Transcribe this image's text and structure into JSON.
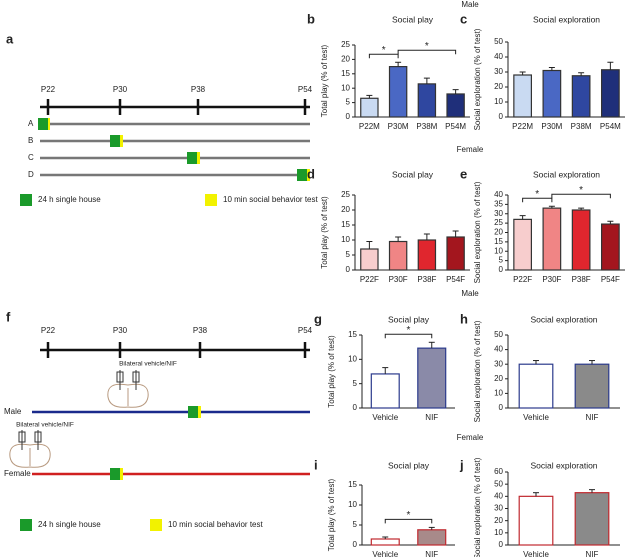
{
  "figure_a": {
    "letter": "a",
    "timepoints": [
      "P22",
      "P30",
      "P38",
      "P54"
    ],
    "rows": [
      "A",
      "B",
      "C",
      "D"
    ],
    "legend": [
      "24 h single house",
      "10 min social behavior test"
    ]
  },
  "figure_f": {
    "letter": "f",
    "timepoints": [
      "P22",
      "P30",
      "P38",
      "P54"
    ],
    "injection_labels": [
      "Bilateral vehicle/NIF",
      "Bilateral vehicle/NIF"
    ],
    "groups": [
      "Male",
      "Female"
    ],
    "legend": [
      "24 h single house",
      "10 min social behavior test"
    ]
  },
  "section_headers": [
    "Male",
    "Female",
    "Male",
    "Female"
  ],
  "chart_data": [
    {
      "letter": "b",
      "type": "bar",
      "title": "Social play",
      "y_label": "Total play (% of test)",
      "categories": [
        "P22M",
        "P30M",
        "P38M",
        "P54M"
      ],
      "values": [
        6.5,
        17.5,
        11.5,
        8
      ],
      "errors": [
        1,
        1.5,
        2,
        1.5
      ],
      "colors": [
        "#c9daf2",
        "#4a68c4",
        "#2f47a0",
        "#1f2f7a"
      ],
      "edge_colors": [
        "#333",
        "#333",
        "#333",
        "#333"
      ],
      "ylim": [
        0,
        25
      ],
      "yticks": [
        0,
        5,
        10,
        15,
        20,
        25
      ],
      "comparisons": [
        {
          "label": "*",
          "between": [
            "P22M",
            "P30M"
          ]
        },
        {
          "label": "*",
          "between": [
            "P30M",
            "P54M"
          ]
        }
      ]
    },
    {
      "letter": "c",
      "type": "bar",
      "title": "Social exploration",
      "y_label": "Social exploration (% of test)",
      "categories": [
        "P22M",
        "P30M",
        "P38M",
        "P54M"
      ],
      "values": [
        28,
        31,
        27.5,
        31.5
      ],
      "errors": [
        2,
        2,
        2,
        5
      ],
      "colors": [
        "#c9daf2",
        "#4a68c4",
        "#2f47a0",
        "#1f2f7a"
      ],
      "edge_colors": [
        "#333",
        "#333",
        "#333",
        "#333"
      ],
      "ylim": [
        0,
        50
      ],
      "yticks": [
        0,
        10,
        20,
        30,
        40,
        50
      ],
      "comparisons": []
    },
    {
      "letter": "d",
      "type": "bar",
      "title": "Social play",
      "y_label": "Total play (% of test)",
      "categories": [
        "P22F",
        "P30F",
        "P38F",
        "P54F"
      ],
      "values": [
        7,
        9.5,
        10,
        11
      ],
      "errors": [
        2.5,
        1.5,
        2,
        2
      ],
      "colors": [
        "#f7cdcd",
        "#f08585",
        "#e0262e",
        "#a3161e"
      ],
      "edge_colors": [
        "#333",
        "#333",
        "#333",
        "#333"
      ],
      "ylim": [
        0,
        25
      ],
      "yticks": [
        0,
        5,
        10,
        15,
        20,
        25
      ],
      "comparisons": []
    },
    {
      "letter": "e",
      "type": "bar",
      "title": "Social exploration",
      "y_label": "Social exploration (% of test)",
      "categories": [
        "P22F",
        "P30F",
        "P38F",
        "P54F"
      ],
      "values": [
        27,
        33,
        32,
        24.5
      ],
      "errors": [
        2,
        1,
        1,
        1.5
      ],
      "colors": [
        "#f7cdcd",
        "#f08585",
        "#e0262e",
        "#a3161e"
      ],
      "edge_colors": [
        "#333",
        "#333",
        "#333",
        "#333"
      ],
      "ylim": [
        0,
        40
      ],
      "yticks": [
        0,
        5,
        10,
        15,
        20,
        25,
        30,
        35,
        40
      ],
      "comparisons": [
        {
          "label": "*",
          "between": [
            "P22F",
            "P30F"
          ]
        },
        {
          "label": "*",
          "between": [
            "P30F",
            "P54F"
          ]
        }
      ]
    },
    {
      "letter": "g",
      "type": "bar",
      "title": "Social play",
      "y_label": "Total play (% of test)",
      "categories": [
        "Vehicle",
        "NIF"
      ],
      "values": [
        7,
        12.3
      ],
      "errors": [
        1.3,
        1.2
      ],
      "colors": [
        "#ffffff",
        "#8a8aa8"
      ],
      "edge_colors": [
        "#2b3a8c",
        "#2b3a8c"
      ],
      "ylim": [
        0,
        15
      ],
      "yticks": [
        0,
        5,
        10,
        15
      ],
      "comparisons": [
        {
          "label": "*",
          "between": [
            "Vehicle",
            "NIF"
          ]
        }
      ]
    },
    {
      "letter": "h",
      "type": "bar",
      "title": "Social exploration",
      "y_label": "Social exploration (% of test)",
      "categories": [
        "Vehicle",
        "NIF"
      ],
      "values": [
        30,
        30
      ],
      "errors": [
        2.5,
        2.5
      ],
      "colors": [
        "#ffffff",
        "#8a8a8a"
      ],
      "edge_colors": [
        "#2b3a8c",
        "#2b3a8c"
      ],
      "ylim": [
        0,
        50
      ],
      "yticks": [
        0,
        10,
        20,
        30,
        40,
        50
      ],
      "comparisons": []
    },
    {
      "letter": "i",
      "type": "bar",
      "title": "Social play",
      "y_label": "Total play (% of test)",
      "categories": [
        "Vehicle",
        "NIF"
      ],
      "values": [
        1.5,
        3.8
      ],
      "errors": [
        0.5,
        0.6
      ],
      "colors": [
        "#ffffff",
        "#a88a8a"
      ],
      "edge_colors": [
        "#c0282e",
        "#c0282e"
      ],
      "ylim": [
        0,
        15
      ],
      "yticks": [
        0,
        5,
        10,
        15
      ],
      "comparisons": [
        {
          "label": "*",
          "between": [
            "Vehicle",
            "NIF"
          ]
        }
      ]
    },
    {
      "letter": "j",
      "type": "bar",
      "title": "Social exploration",
      "y_label": "Social exploration (% of test)",
      "categories": [
        "Vehicle",
        "NIF"
      ],
      "values": [
        40,
        43
      ],
      "errors": [
        3,
        2.5
      ],
      "colors": [
        "#ffffff",
        "#8a8a8a"
      ],
      "edge_colors": [
        "#c0282e",
        "#c0282e"
      ],
      "ylim": [
        0,
        60
      ],
      "yticks": [
        0,
        10,
        20,
        30,
        40,
        50,
        60
      ],
      "comparisons": []
    }
  ]
}
